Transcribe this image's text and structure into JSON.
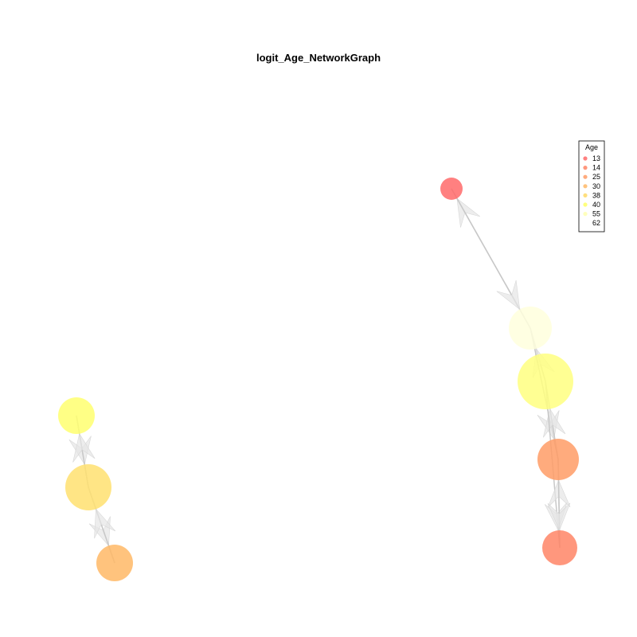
{
  "title": "logit_Age_NetworkGraph",
  "legend": {
    "title": "Age",
    "entries": [
      {
        "label": "13",
        "color": "#ff6a6a"
      },
      {
        "label": "14",
        "color": "#ff8566"
      },
      {
        "label": "25",
        "color": "#ff9c66"
      },
      {
        "label": "30",
        "color": "#ffb866"
      },
      {
        "label": "38",
        "color": "#ffd966"
      },
      {
        "label": "40",
        "color": "#ffff66"
      },
      {
        "label": "55",
        "color": "#ffffb0"
      },
      {
        "label": "62",
        "color": "#ffffff"
      }
    ]
  },
  "colors": {
    "edge": "#c8c8c8",
    "arrow_fill": "#e6e6e6"
  }
}
